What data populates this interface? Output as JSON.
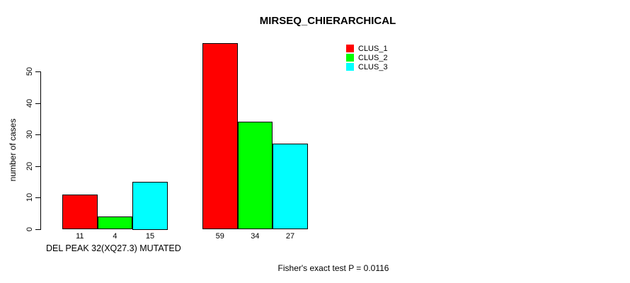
{
  "chart_data": {
    "type": "bar",
    "title": "MIRSEQ_CHIERARCHICAL",
    "ylabel": "number of cases",
    "xlabel": "DEL PEAK 32(XQ27.3) MUTATED",
    "annotation": "Fisher's exact test P = 0.0116",
    "ylim": [
      0,
      50
    ],
    "yticks": [
      0,
      10,
      20,
      30,
      40,
      50
    ],
    "grid": false,
    "legend_position": "top-right",
    "categories": [
      "DEL PEAK 32(XQ27.3) MUTATED",
      ""
    ],
    "series": [
      {
        "name": "CLUS_1",
        "color": "#FF0000",
        "values": [
          11,
          59
        ]
      },
      {
        "name": "CLUS_2",
        "color": "#00FF00",
        "values": [
          4,
          34
        ]
      },
      {
        "name": "CLUS_3",
        "color": "#00FFFF",
        "values": [
          15,
          27
        ]
      }
    ],
    "bar_value_labels": [
      [
        "11",
        "4",
        "15"
      ],
      [
        "59",
        "34",
        "27"
      ]
    ]
  }
}
